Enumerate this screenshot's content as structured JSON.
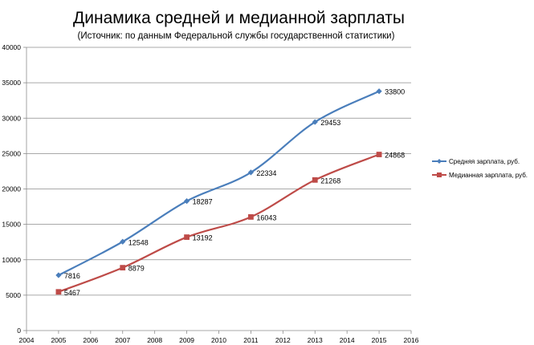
{
  "chart_data": {
    "type": "line",
    "title": "Динамика средней и медианной зарплаты",
    "subtitle": "(Источник: по данным Федеральной службы государственной статистики)",
    "xlim": [
      2004,
      2016
    ],
    "ylim": [
      0,
      40000
    ],
    "xticks": [
      "2004",
      "2005",
      "2006",
      "2007",
      "2008",
      "2009",
      "2010",
      "2011",
      "2012",
      "2013",
      "2014",
      "2015",
      "2016"
    ],
    "yticks": [
      "0",
      "5000",
      "10000",
      "15000",
      "20000",
      "25000",
      "30000",
      "35000",
      "40000"
    ],
    "grid": true,
    "legend_position": "right",
    "series": [
      {
        "name": "Средняя зарплата, руб.",
        "color": "#4a7ebb",
        "marker": "diamond",
        "x": [
          2005,
          2007,
          2009,
          2011,
          2013,
          2015
        ],
        "values": [
          7816,
          12548,
          18287,
          22334,
          29453,
          33800
        ],
        "labels": [
          "7816",
          "12548",
          "18287",
          "22334",
          "29453",
          "33800"
        ]
      },
      {
        "name": "Медианная зарплата, руб.",
        "color": "#be4b48",
        "marker": "square",
        "x": [
          2005,
          2007,
          2009,
          2011,
          2013,
          2015
        ],
        "values": [
          5467,
          8879,
          13192,
          16043,
          21268,
          24868
        ],
        "labels": [
          "5467",
          "8879",
          "13192",
          "16043",
          "21268",
          "24868"
        ]
      }
    ]
  }
}
